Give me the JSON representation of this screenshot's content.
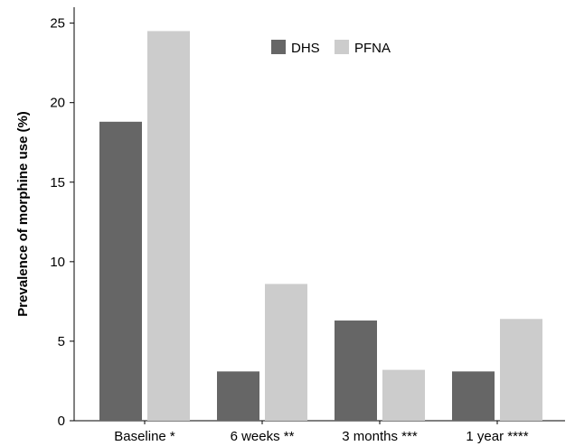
{
  "chart_data": {
    "type": "bar",
    "categories": [
      "Baseline *",
      "6 weeks **",
      "3 months ***",
      "1 year ****"
    ],
    "series": [
      {
        "name": "DHS",
        "values": [
          18.8,
          3.1,
          6.3,
          3.1
        ],
        "color": "#666666"
      },
      {
        "name": "PFNA",
        "values": [
          24.5,
          8.6,
          3.2,
          6.4
        ],
        "color": "#cccccc"
      }
    ],
    "ylabel": "Prevalence of morphine use (%)",
    "xlabel": "",
    "ylim": [
      0,
      26
    ],
    "yticks": [
      0,
      5,
      10,
      15,
      20,
      25
    ],
    "legend_position": "top-center",
    "grid": false
  }
}
